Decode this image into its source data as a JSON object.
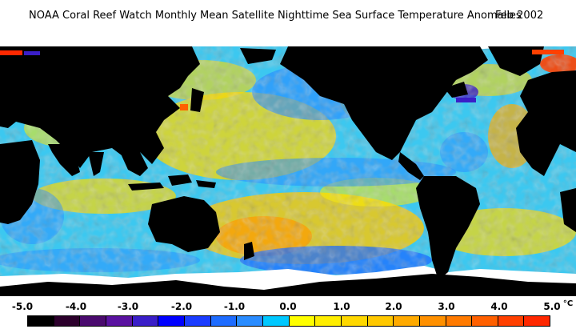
{
  "title": "NOAA Coral Reef Watch Monthly Mean Satellite Nighttime Sea Surface Temperature Anomalies",
  "date": "Feb 2002",
  "legend": {
    "tick_labels": [
      "-5.0",
      "-4.0",
      "-3.0",
      "-2.0",
      "-1.0",
      "0.0",
      "1.0",
      "2.0",
      "3.0",
      "4.0",
      "5.0"
    ],
    "unit": "°C",
    "colors": [
      "#000000",
      "#2c002c",
      "#4a0a6e",
      "#5a12a0",
      "#3a1ec8",
      "#0000ff",
      "#1a3cff",
      "#1e6cff",
      "#2a8cff",
      "#00c8ff",
      "#ffff00",
      "#ffee00",
      "#ffd800",
      "#ffc800",
      "#ffaa00",
      "#ff9000",
      "#ff7a00",
      "#ff6000",
      "#ff4000",
      "#ff2800"
    ]
  },
  "colors": {
    "land": "#000000",
    "ice": "#ffffff",
    "neutral_sea": "#3cc8f0"
  }
}
